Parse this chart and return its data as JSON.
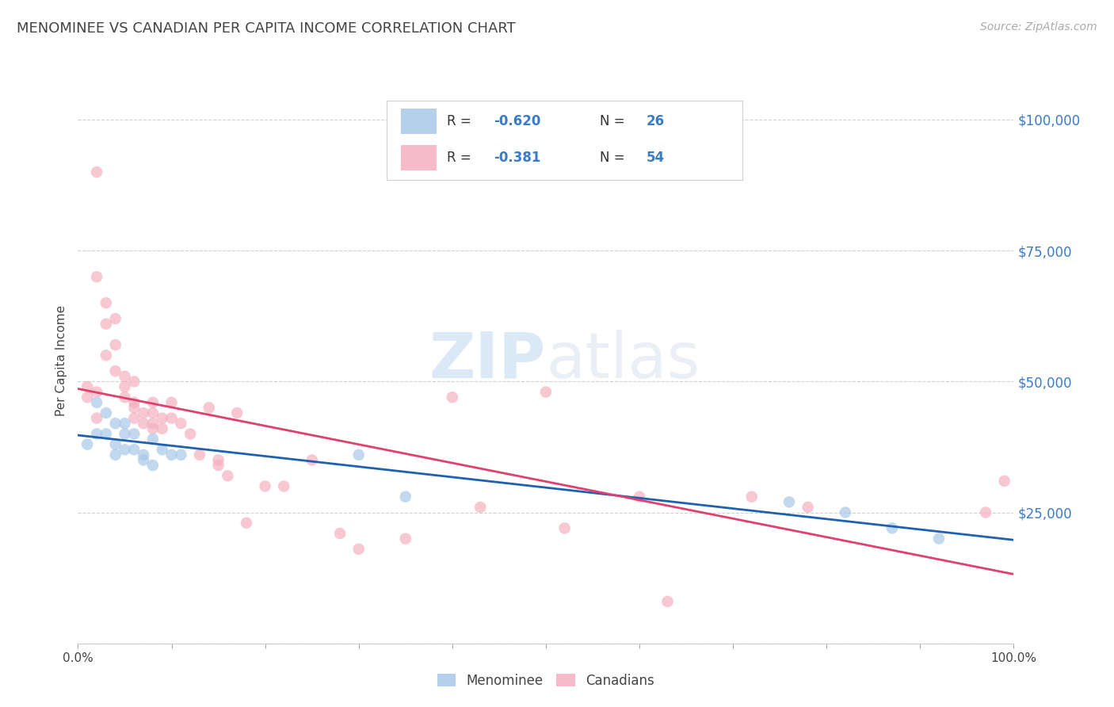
{
  "title": "MENOMINEE VS CANADIAN PER CAPITA INCOME CORRELATION CHART",
  "source": "Source: ZipAtlas.com",
  "ylabel": "Per Capita Income",
  "yticks": [
    0,
    25000,
    50000,
    75000,
    100000
  ],
  "ytick_labels": [
    "",
    "$25,000",
    "$50,000",
    "$75,000",
    "$100,000"
  ],
  "ylim": [
    0,
    108000
  ],
  "xlim": [
    0.0,
    1.0
  ],
  "blue_color": "#a8c8e8",
  "pink_color": "#f4b0c0",
  "line_blue": "#2060b0",
  "line_pink": "#e04070",
  "blue_scatter_x": [
    0.01,
    0.02,
    0.02,
    0.03,
    0.03,
    0.04,
    0.04,
    0.04,
    0.05,
    0.05,
    0.05,
    0.06,
    0.06,
    0.07,
    0.07,
    0.08,
    0.08,
    0.09,
    0.1,
    0.11,
    0.3,
    0.35,
    0.76,
    0.82,
    0.87,
    0.92
  ],
  "blue_scatter_y": [
    38000,
    46000,
    40000,
    44000,
    40000,
    42000,
    38000,
    36000,
    42000,
    40000,
    37000,
    40000,
    37000,
    36000,
    35000,
    39000,
    34000,
    37000,
    36000,
    36000,
    36000,
    28000,
    27000,
    25000,
    22000,
    20000
  ],
  "pink_scatter_x": [
    0.01,
    0.01,
    0.02,
    0.02,
    0.02,
    0.02,
    0.03,
    0.03,
    0.03,
    0.04,
    0.04,
    0.04,
    0.05,
    0.05,
    0.05,
    0.06,
    0.06,
    0.06,
    0.06,
    0.07,
    0.07,
    0.08,
    0.08,
    0.08,
    0.08,
    0.09,
    0.09,
    0.1,
    0.1,
    0.11,
    0.12,
    0.13,
    0.14,
    0.15,
    0.15,
    0.16,
    0.17,
    0.18,
    0.2,
    0.22,
    0.25,
    0.28,
    0.3,
    0.35,
    0.4,
    0.43,
    0.5,
    0.52,
    0.6,
    0.63,
    0.72,
    0.78,
    0.97,
    0.99
  ],
  "pink_scatter_y": [
    49000,
    47000,
    90000,
    70000,
    48000,
    43000,
    65000,
    61000,
    55000,
    62000,
    57000,
    52000,
    51000,
    49000,
    47000,
    50000,
    46000,
    45000,
    43000,
    44000,
    42000,
    46000,
    44000,
    42000,
    41000,
    43000,
    41000,
    46000,
    43000,
    42000,
    40000,
    36000,
    45000,
    35000,
    34000,
    32000,
    44000,
    23000,
    30000,
    30000,
    35000,
    21000,
    18000,
    20000,
    47000,
    26000,
    48000,
    22000,
    28000,
    8000,
    28000,
    26000,
    25000,
    31000
  ],
  "grid_color": "#d0d0d0",
  "background_color": "#ffffff",
  "watermark_zip": "ZIP",
  "watermark_atlas": "atlas",
  "marker_size": 110,
  "title_fontsize": 13,
  "source_fontsize": 10,
  "legend_r_blue": "-0.620",
  "legend_n_blue": "26",
  "legend_r_pink": "-0.381",
  "legend_n_pink": "54",
  "tick_label_color": "#3a7bc8",
  "text_color": "#444444"
}
